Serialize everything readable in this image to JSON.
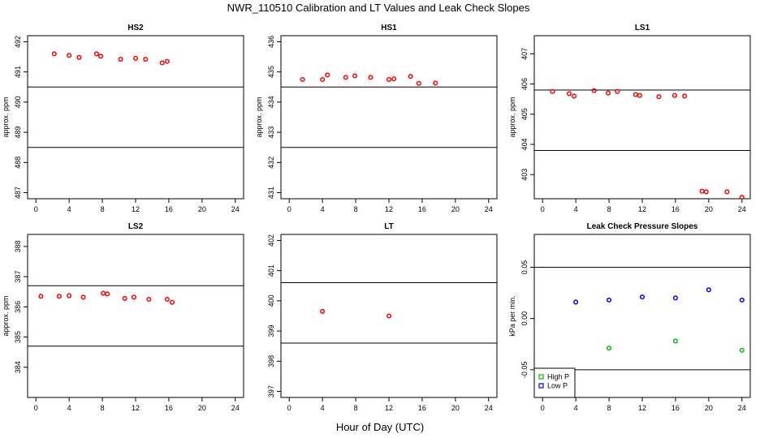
{
  "figure": {
    "title": "NWR_110510  Calibration and LT Values and Leak Check Slopes",
    "xlabel": "Hour of Day (UTC)"
  },
  "colors": {
    "points": "#ff0000",
    "high_p": "#00c000",
    "low_p": "#0000ff",
    "axes": "#000000"
  },
  "chart_data": [
    {
      "type": "scatter",
      "id": "hs2",
      "title": "HS2",
      "ylabel": "approx. ppm",
      "xlim": [
        -1,
        25
      ],
      "ylim": [
        486.8,
        492.2
      ],
      "xticks": [
        0,
        4,
        8,
        12,
        16,
        20,
        24
      ],
      "yticks": [
        487,
        488,
        489,
        490,
        491,
        492
      ],
      "hlines": [
        490.5,
        488.5
      ],
      "series": [
        {
          "name": "cal",
          "marker": "circle",
          "color": "#ff0000",
          "x": [
            2.2,
            4.0,
            5.2,
            7.3,
            7.8,
            10.2,
            12.0,
            13.2,
            15.2,
            15.8
          ],
          "y": [
            491.6,
            491.55,
            491.48,
            491.6,
            491.52,
            491.42,
            491.45,
            491.42,
            491.3,
            491.35
          ]
        }
      ]
    },
    {
      "type": "scatter",
      "id": "hs1",
      "title": "HS1",
      "ylabel": "approx. ppm",
      "xlim": [
        -1,
        25
      ],
      "ylim": [
        430.8,
        436.2
      ],
      "xticks": [
        0,
        4,
        8,
        12,
        16,
        20,
        24
      ],
      "yticks": [
        431,
        432,
        433,
        434,
        435,
        436
      ],
      "hlines": [
        434.5,
        432.5
      ],
      "series": [
        {
          "name": "cal",
          "marker": "circle",
          "color": "#ff0000",
          "x": [
            1.6,
            4.0,
            4.6,
            6.8,
            7.9,
            9.8,
            12.0,
            12.6,
            14.6,
            15.6,
            17.6
          ],
          "y": [
            434.75,
            434.75,
            434.9,
            434.82,
            434.87,
            434.82,
            434.75,
            434.77,
            434.85,
            434.62,
            434.63
          ]
        }
      ]
    },
    {
      "type": "scatter",
      "id": "ls1",
      "title": "LS1",
      "ylabel": "approx. ppm",
      "xlim": [
        -1,
        25
      ],
      "ylim": [
        402.2,
        407.6
      ],
      "xticks": [
        0,
        4,
        8,
        12,
        16,
        20,
        24
      ],
      "yticks": [
        403,
        404,
        405,
        406,
        407
      ],
      "hlines": [
        405.8,
        403.8
      ],
      "series": [
        {
          "name": "cal",
          "marker": "circle",
          "color": "#ff0000",
          "x": [
            1.2,
            3.2,
            3.8,
            6.2,
            7.9,
            9.0,
            11.2,
            11.7,
            14.0,
            15.9,
            17.1,
            19.2,
            19.7,
            22.2,
            24.0
          ],
          "y": [
            405.75,
            405.68,
            405.6,
            405.78,
            405.7,
            405.75,
            405.65,
            405.62,
            405.58,
            405.62,
            405.6,
            402.45,
            402.43,
            402.43,
            402.25
          ]
        }
      ]
    },
    {
      "type": "scatter",
      "id": "ls2",
      "title": "LS2",
      "ylabel": "approx. ppm",
      "xlim": [
        -1,
        25
      ],
      "ylim": [
        383.0,
        388.4
      ],
      "xticks": [
        0,
        4,
        8,
        12,
        16,
        20,
        24
      ],
      "yticks": [
        384,
        385,
        386,
        387,
        388
      ],
      "hlines": [
        386.7,
        384.7
      ],
      "series": [
        {
          "name": "cal",
          "marker": "circle",
          "color": "#ff0000",
          "x": [
            0.6,
            2.8,
            4.0,
            5.7,
            8.1,
            8.6,
            10.7,
            11.8,
            13.6,
            15.8,
            16.4
          ],
          "y": [
            386.35,
            386.35,
            386.37,
            386.32,
            386.45,
            386.43,
            386.28,
            386.32,
            386.25,
            386.25,
            386.15
          ]
        }
      ]
    },
    {
      "type": "scatter",
      "id": "lt",
      "title": "LT",
      "ylabel": "",
      "xlim": [
        -1,
        25
      ],
      "ylim": [
        396.8,
        402.2
      ],
      "xticks": [
        0,
        4,
        8,
        12,
        16,
        20,
        24
      ],
      "yticks": [
        397,
        398,
        399,
        400,
        401,
        402
      ],
      "hlines": [
        400.6,
        398.6
      ],
      "series": [
        {
          "name": "lt",
          "marker": "circle",
          "color": "#ff0000",
          "x": [
            4.0,
            12.0
          ],
          "y": [
            399.65,
            399.5
          ]
        }
      ]
    },
    {
      "type": "scatter",
      "id": "leak",
      "title": "Leak Check Pressure Slopes",
      "ylabel": "kPa per min.",
      "xlim": [
        -1,
        25
      ],
      "ylim": [
        -0.077,
        0.082
      ],
      "xticks": [
        0,
        4,
        8,
        12,
        16,
        20,
        24
      ],
      "yticks": [
        -0.05,
        0.0,
        0.05
      ],
      "ytick_labels": [
        "-0.05",
        "0.00",
        "0.05"
      ],
      "hlines": [
        0.05,
        -0.05
      ],
      "legend": {
        "position": "bottom-left",
        "entries": [
          "High P",
          "Low P"
        ]
      },
      "series": [
        {
          "name": "High P",
          "marker": "circle",
          "color": "#00c000",
          "x": [
            8.0,
            16.0,
            24.0
          ],
          "y": [
            -0.029,
            -0.022,
            -0.031
          ]
        },
        {
          "name": "Low P",
          "marker": "circle",
          "color": "#0000ff",
          "x": [
            4.0,
            8.0,
            12.0,
            16.0,
            20.0,
            24.0
          ],
          "y": [
            0.016,
            0.018,
            0.021,
            0.02,
            0.028,
            0.018
          ]
        }
      ]
    }
  ]
}
